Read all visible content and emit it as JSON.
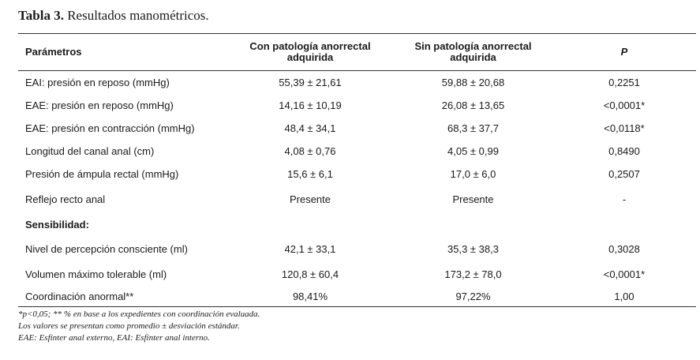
{
  "caption": {
    "label": "Tabla 3.",
    "title": "Resultados manométricos."
  },
  "table": {
    "headers": [
      "Parámetros",
      [
        "Con patología anorrectal",
        "adquirida"
      ],
      [
        "Sin patología anorrectal",
        "adquirida"
      ],
      "P"
    ],
    "rows": [
      [
        "EAI: presión en reposo (mmHg)",
        "55,39  ± 21,61",
        "59,88 ± 20,68",
        "0,2251"
      ],
      [
        "EAE: presión en reposo (mmHg)",
        "14,16 ± 10,19",
        "26,08 ± 13,65",
        "<0,0001*"
      ],
      [
        "EAE: presión en contracción (mmHg)",
        "48,4 ± 34,1",
        "68,3 ± 37,7",
        "<0,0118*"
      ],
      [
        "Longitud del canal anal (cm)",
        "4,08  ± 0,76",
        "4,05 ± 0,99",
        "0,8490"
      ],
      [
        "Presión de ámpula rectal (mmHg)",
        "15,6 ± 6,1",
        "17,0 ± 6,0",
        "0,2507"
      ],
      [
        "Reflejo recto anal",
        "Presente",
        "Presente",
        "-"
      ],
      [
        "Sensibilidad:",
        "",
        "",
        ""
      ],
      [
        "Nivel de percepción consciente (ml)",
        "42,1 ± 33,1",
        "35,3 ± 38,3",
        "0,3028"
      ],
      [
        "Volumen máximo tolerable (ml)",
        "120,8 ± 60,4",
        "173,2 ± 78,0",
        "<0,0001*"
      ],
      [
        "Coordinación anormal**",
        "98,41%",
        "97,22%",
        "1,00"
      ]
    ]
  },
  "notes": [
    "*p<0,05; ** % en base a los expedientes con coordinación evaluada.",
    "Los valores se presentan como promedio ± desviación estándar.",
    "EAE: Esfínter anal externo, EAI: Esfínter anal interno."
  ]
}
